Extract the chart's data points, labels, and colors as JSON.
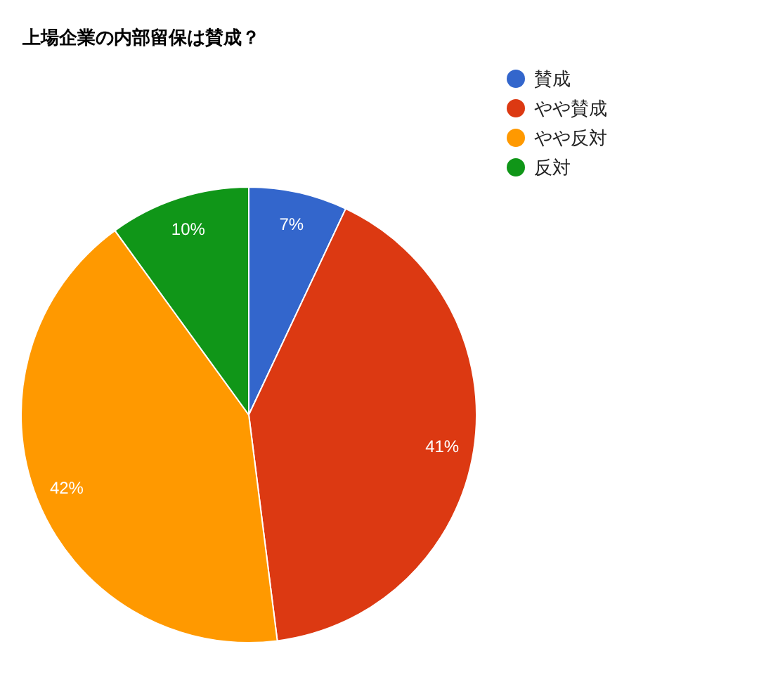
{
  "chart_data": {
    "type": "pie",
    "title": "上場企業の内部留保は賛成？",
    "categories": [
      "賛成",
      "やや賛成",
      "やや反対",
      "反対"
    ],
    "values": [
      7,
      41,
      42,
      10
    ],
    "colors": [
      "#3366cc",
      "#dc3912",
      "#ff9900",
      "#109618"
    ],
    "value_labels": [
      "7%",
      "41%",
      "42%",
      "10%"
    ],
    "legend": "right"
  }
}
